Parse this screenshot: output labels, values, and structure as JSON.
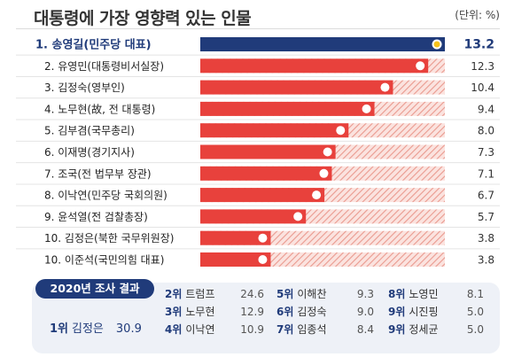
{
  "title": "대통령에 가장 영향력 있는 인물",
  "unit": "(단위: %)",
  "chart_data": {
    "type": "bar",
    "orientation": "horizontal",
    "title": "대통령에 가장 영향력 있는 인물",
    "unit": "(단위: %)",
    "categories": [
      "1. 송영길(민주당 대표)",
      "2. 유영민(대통령비서실장)",
      "3. 김정숙(영부인)",
      "4. 노무현(故, 전 대통령)",
      "5. 김부겸(국무총리)",
      "6. 이재명(경기지사)",
      "7. 조국(전 법무부 장관)",
      "8. 이낙연(민주당 국회의원)",
      "9. 윤석열(전 검찰총장)",
      "10. 김정은(북한 국무위원장)",
      "10. 이준석(국민의힘 대표)"
    ],
    "values": [
      13.2,
      12.3,
      10.4,
      9.4,
      8.0,
      7.3,
      7.1,
      6.7,
      5.7,
      3.8,
      3.8
    ],
    "value_labels": [
      "13.2",
      "12.3",
      "10.4",
      "9.4",
      "8.0",
      "7.3",
      "7.1",
      "6.7",
      "5.7",
      "3.8",
      "3.8"
    ],
    "xlim": [
      0,
      13.2
    ],
    "colors": {
      "first": "#203b7a",
      "others": "#e8413c",
      "remainder_hatch": "#f0a398",
      "dot": "#ffffff",
      "first_dot": "#f6c21a"
    }
  },
  "result_2020": {
    "title": "2020년 조사 결과",
    "first": {
      "rank": "1위",
      "name": "김정은",
      "value": "30.9"
    },
    "items": [
      {
        "rank": "2위",
        "name": "트럼프",
        "value": "24.6"
      },
      {
        "rank": "5위",
        "name": "이해찬",
        "value": "9.3"
      },
      {
        "rank": "8위",
        "name": "노영민",
        "value": "8.1"
      },
      {
        "rank": "3위",
        "name": "노무현",
        "value": "12.9"
      },
      {
        "rank": "6위",
        "name": "김정숙",
        "value": "9.0"
      },
      {
        "rank": "9위",
        "name": "시진핑",
        "value": "5.0"
      },
      {
        "rank": "4위",
        "name": "이낙연",
        "value": "10.9"
      },
      {
        "rank": "7위",
        "name": "임종석",
        "value": "8.4"
      },
      {
        "rank": "9위",
        "name": "정세균",
        "value": "5.0"
      }
    ]
  }
}
